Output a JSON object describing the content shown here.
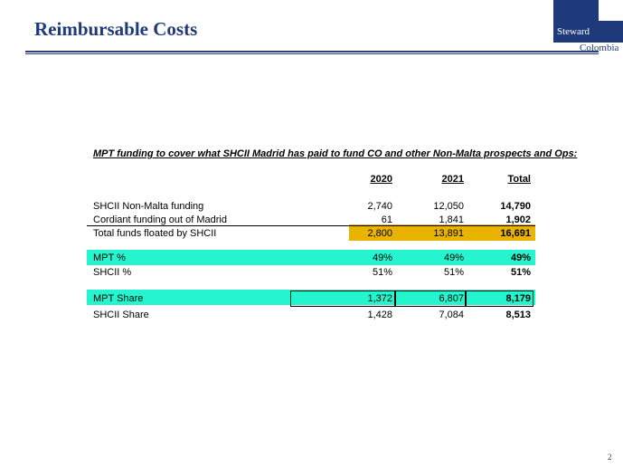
{
  "header": {
    "title": "Reimbursable Costs",
    "logo_line1": "Steward",
    "logo_line2": "Colombia",
    "page_number": "2"
  },
  "table": {
    "heading": "MPT funding to cover what SHCII Madrid has paid to fund CO and other Non-Malta prospects and Ops:",
    "columns": [
      "2020",
      "2021",
      "Total"
    ],
    "rows": [
      {
        "label": "SHCII Non-Malta funding",
        "v2020": "2,740",
        "v2021": "12,050",
        "total": "14,790"
      },
      {
        "label": "Cordiant funding out of Madrid",
        "v2020": "61",
        "v2021": "1,841",
        "total": "1,902"
      },
      {
        "label": "Total funds floated by SHCII",
        "v2020": "2,800",
        "v2021": "13,891",
        "total": "16,691"
      },
      {
        "label": "MPT %",
        "v2020": "49%",
        "v2021": "49%",
        "total": "49%"
      },
      {
        "label": "SHCII %",
        "v2020": "51%",
        "v2021": "51%",
        "total": "51%"
      },
      {
        "label": "MPT Share",
        "v2020": "1,372",
        "v2021": "6,807",
        "total": "8,179"
      },
      {
        "label": "SHCII Share",
        "v2020": "1,428",
        "v2021": "7,084",
        "total": "8,513"
      }
    ]
  },
  "colors": {
    "brand_blue": "#1f3a7a",
    "highlight_teal": "#25f5cf",
    "highlight_gold": "#e8b400"
  }
}
